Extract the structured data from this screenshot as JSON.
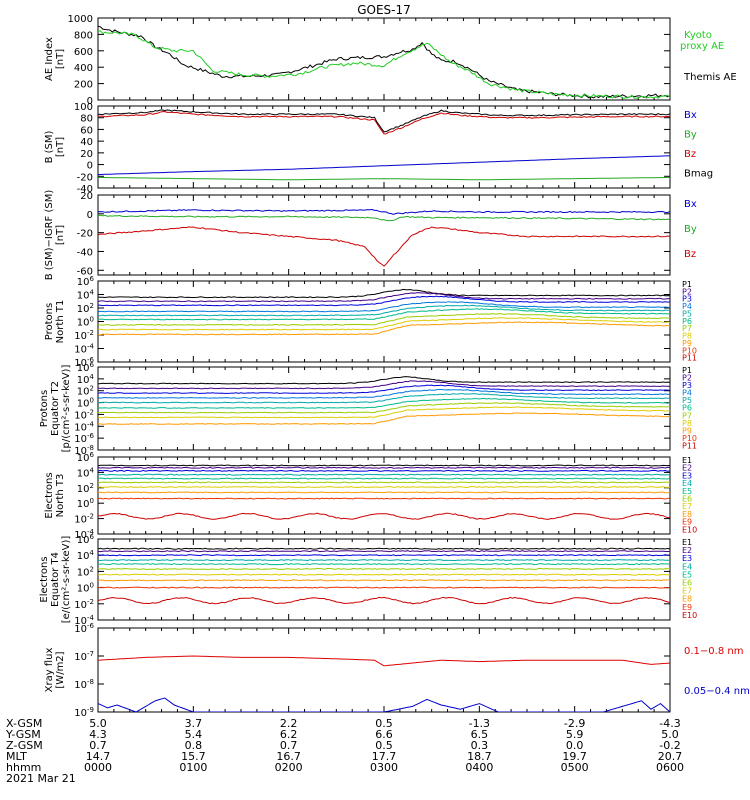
{
  "title": "GOES-17",
  "footer": {
    "date": "2021 Mar 21",
    "row_labels": [
      "X-GSM",
      "Y-GSM",
      "Z-GSM",
      "MLT",
      "hhmm"
    ],
    "columns": [
      {
        "x": "5.0",
        "y": "4.3",
        "z": "0.7",
        "mlt": "14.7",
        "hhmm": "0000"
      },
      {
        "x": "3.7",
        "y": "5.4",
        "z": "0.8",
        "mlt": "15.7",
        "hhmm": "0100"
      },
      {
        "x": "2.2",
        "y": "6.2",
        "z": "0.7",
        "mlt": "16.7",
        "hhmm": "0200"
      },
      {
        "x": "0.5",
        "y": "6.6",
        "z": "0.5",
        "mlt": "17.7",
        "hhmm": "0300"
      },
      {
        "x": "-1.3",
        "y": "6.5",
        "z": "0.3",
        "mlt": "18.7",
        "hhmm": "0400"
      },
      {
        "x": "-2.9",
        "y": "5.9",
        "z": "0.0",
        "mlt": "19.7",
        "hhmm": "0500"
      },
      {
        "x": "-4.3",
        "y": "5.0",
        "z": "-0.2",
        "mlt": "20.7",
        "hhmm": "0600"
      }
    ]
  },
  "chart_data": [
    {
      "type": "line",
      "ylabel": [
        "AE Index",
        "[nT]"
      ],
      "ylim": [
        0,
        1000
      ],
      "yticks": [
        "0",
        "200",
        "400",
        "600",
        "800",
        "1000"
      ],
      "xlim": [
        0,
        6
      ],
      "legend": [
        {
          "name": "Kyoto",
          "name2": "proxy AE",
          "color": "#22cc22"
        },
        {
          "name": "Themis AE",
          "color": "#000000"
        }
      ],
      "series": [
        {
          "name": "Themis AE",
          "color": "#000000",
          "x": [
            0,
            0.1,
            0.25,
            0.45,
            0.6,
            0.75,
            0.9,
            1.1,
            1.3,
            1.6,
            1.9,
            2.2,
            2.5,
            2.8,
            3.0,
            3.15,
            3.3,
            3.4,
            3.5,
            3.6,
            3.75,
            3.9,
            4.1,
            4.4,
            4.8,
            5.2,
            5.6,
            6.0
          ],
          "y": [
            900,
            860,
            820,
            780,
            650,
            560,
            430,
            360,
            290,
            290,
            310,
            400,
            500,
            520,
            530,
            580,
            620,
            700,
            560,
            480,
            470,
            380,
            230,
            120,
            70,
            40,
            50,
            60
          ]
        },
        {
          "name": "Kyoto proxy AE",
          "color": "#22cc22",
          "x": [
            0,
            0.2,
            0.4,
            0.6,
            0.8,
            1.0,
            1.2,
            1.5,
            1.8,
            2.1,
            2.4,
            2.7,
            3.0,
            3.2,
            3.35,
            3.45,
            3.55,
            3.7,
            3.9,
            4.1,
            4.4,
            4.8,
            5.2,
            5.6,
            6.0
          ],
          "y": [
            830,
            820,
            790,
            640,
            600,
            600,
            360,
            310,
            290,
            320,
            410,
            450,
            420,
            560,
            640,
            690,
            600,
            460,
            350,
            200,
            120,
            70,
            50,
            40,
            40
          ]
        }
      ]
    },
    {
      "type": "line",
      "ylabel": [
        "B (SM)",
        "[nT]"
      ],
      "ylim": [
        -40,
        100
      ],
      "yticks": [
        "-40",
        "-20",
        "0",
        "20",
        "40",
        "60",
        "80",
        "100"
      ],
      "xlim": [
        0,
        6
      ],
      "legend": [
        {
          "name": "Bx",
          "color": "#0000cc"
        },
        {
          "name": "By",
          "color": "#22aa22"
        },
        {
          "name": "Bz",
          "color": "#cc0000"
        },
        {
          "name": "Bmag",
          "color": "#000000"
        }
      ],
      "series": [
        {
          "name": "Bx",
          "color": "#0000cc",
          "x": [
            0,
            1,
            2,
            3,
            4,
            5,
            6
          ],
          "y": [
            -17,
            -12,
            -8,
            -2,
            4,
            10,
            15
          ]
        },
        {
          "name": "By",
          "color": "#22aa22",
          "x": [
            0,
            1,
            2,
            3,
            4,
            5,
            6
          ],
          "y": [
            -22,
            -24,
            -26,
            -24,
            -26,
            -24,
            -22
          ]
        },
        {
          "name": "Bz",
          "color": "#cc0000",
          "x": [
            0,
            0.5,
            0.7,
            1.0,
            1.5,
            2.0,
            2.5,
            2.9,
            3.0,
            3.2,
            3.4,
            3.6,
            3.8,
            4.2,
            4.6,
            5.0,
            5.5,
            6.0
          ],
          "y": [
            82,
            85,
            90,
            86,
            82,
            82,
            82,
            76,
            52,
            64,
            78,
            88,
            84,
            80,
            80,
            81,
            82,
            82
          ]
        },
        {
          "name": "Bmag",
          "color": "#000000",
          "x": [
            0,
            0.5,
            0.7,
            1.0,
            1.5,
            2.0,
            2.5,
            2.9,
            3.0,
            3.2,
            3.4,
            3.6,
            3.8,
            4.2,
            4.6,
            5.0,
            5.5,
            6.0
          ],
          "y": [
            86,
            89,
            93,
            90,
            86,
            86,
            86,
            80,
            56,
            68,
            82,
            92,
            88,
            84,
            84,
            85,
            86,
            86
          ]
        }
      ]
    },
    {
      "type": "line",
      "ylabel": [
        "B (SM)−IGRF (SM)",
        "[nT]"
      ],
      "ylim": [
        -65,
        20
      ],
      "yticks": [
        "-60",
        "-40",
        "-20",
        "0",
        "20"
      ],
      "xlim": [
        0,
        6
      ],
      "legend": [
        {
          "name": "Bx",
          "color": "#0000cc"
        },
        {
          "name": "By",
          "color": "#22aa22"
        },
        {
          "name": "Bz",
          "color": "#cc0000"
        }
      ],
      "series": [
        {
          "name": "Bx",
          "color": "#0000cc",
          "x": [
            0,
            1,
            2,
            2.9,
            3.1,
            3.5,
            4,
            5,
            6
          ],
          "y": [
            2,
            4,
            3,
            4,
            0,
            3,
            2,
            2,
            2
          ]
        },
        {
          "name": "By",
          "color": "#22aa22",
          "x": [
            0,
            1,
            2,
            2.9,
            3.05,
            3.2,
            3.5,
            4,
            5,
            6
          ],
          "y": [
            -2,
            -3,
            -3,
            -4,
            -8,
            -3,
            -4,
            -4,
            -5,
            -6
          ]
        },
        {
          "name": "Bz",
          "color": "#cc0000",
          "x": [
            0,
            0.5,
            1.0,
            1.5,
            2.0,
            2.5,
            2.8,
            2.95,
            3.0,
            3.1,
            3.3,
            3.5,
            3.7,
            4.0,
            4.5,
            5.0,
            5.5,
            6.0
          ],
          "y": [
            -22,
            -18,
            -14,
            -20,
            -24,
            -28,
            -35,
            -52,
            -56,
            -44,
            -22,
            -14,
            -16,
            -20,
            -24,
            -24,
            -24,
            -24
          ]
        }
      ]
    },
    {
      "type": "line",
      "yscale": "log",
      "ylabel": [
        "Protons",
        "North T1"
      ],
      "ylim": [
        -6,
        6
      ],
      "ytick_exponents": [
        6,
        4,
        2,
        0,
        -2,
        -4,
        -6
      ],
      "xlim": [
        0,
        6
      ],
      "legend": [
        {
          "name": "P1",
          "color": "#000000"
        },
        {
          "name": "P2",
          "color": "#440088"
        },
        {
          "name": "P3",
          "color": "#0000dd"
        },
        {
          "name": "P4",
          "color": "#0077dd"
        },
        {
          "name": "P5",
          "color": "#00aaaa"
        },
        {
          "name": "P6",
          "color": "#00bb88"
        },
        {
          "name": "P7",
          "color": "#99cc00"
        },
        {
          "name": "P8",
          "color": "#ddcc00"
        },
        {
          "name": "P9",
          "color": "#ff9900"
        },
        {
          "name": "P10",
          "color": "#ee3300"
        },
        {
          "name": "P11",
          "color": "#cc0000"
        }
      ],
      "base_levels": [
        3.6,
        3.0,
        2.4,
        1.5,
        0.9,
        0.3,
        -0.5,
        -1.2,
        -1.9
      ],
      "event": {
        "start": 2.9,
        "peak": 3.2,
        "decay": 0.9
      }
    },
    {
      "type": "line",
      "yscale": "log",
      "ylabel": [
        "Protons",
        "Equator T2",
        "[p/(cm²-s-sr-keV)]"
      ],
      "ylim": [
        -8,
        6
      ],
      "ytick_exponents": [
        6,
        4,
        2,
        0,
        -2,
        -4,
        -6,
        -8
      ],
      "xlim": [
        0,
        6
      ],
      "legend": [
        {
          "name": "P1",
          "color": "#000000"
        },
        {
          "name": "P2",
          "color": "#440088"
        },
        {
          "name": "P3",
          "color": "#0000dd"
        },
        {
          "name": "P4",
          "color": "#0077dd"
        },
        {
          "name": "P5",
          "color": "#00aaaa"
        },
        {
          "name": "P6",
          "color": "#00bb88"
        },
        {
          "name": "P7",
          "color": "#99cc00"
        },
        {
          "name": "P8",
          "color": "#ddcc00"
        },
        {
          "name": "P9",
          "color": "#ff9900"
        },
        {
          "name": "P10",
          "color": "#ee3300"
        },
        {
          "name": "P11",
          "color": "#cc0000"
        }
      ],
      "base_levels": [
        3.2,
        2.4,
        1.6,
        0.8,
        0.0,
        -0.9,
        -1.7,
        -2.5,
        -3.6
      ],
      "event": {
        "start": 2.9,
        "peak": 3.2,
        "decay": 0.9
      }
    },
    {
      "type": "line",
      "yscale": "log",
      "ylabel": [
        "Electrons",
        "North T3"
      ],
      "ylim": [
        -4,
        6
      ],
      "ytick_exponents": [
        6,
        4,
        2,
        0,
        -2,
        -4
      ],
      "xlim": [
        0,
        6
      ],
      "legend": [
        {
          "name": "E1",
          "color": "#000000"
        },
        {
          "name": "E2",
          "color": "#440088"
        },
        {
          "name": "E3",
          "color": "#0000dd"
        },
        {
          "name": "E4",
          "color": "#00aaaa"
        },
        {
          "name": "E5",
          "color": "#00bb88"
        },
        {
          "name": "E6",
          "color": "#99cc00"
        },
        {
          "name": "E7",
          "color": "#ddcc00"
        },
        {
          "name": "E8",
          "color": "#ff9900"
        },
        {
          "name": "E9",
          "color": "#ee3300"
        },
        {
          "name": "E10",
          "color": "#cc0000"
        }
      ],
      "base_levels": [
        4.9,
        4.6,
        4.2,
        3.7,
        3.2,
        2.7,
        2.1,
        1.4,
        0.6,
        -1.7
      ]
    },
    {
      "type": "line",
      "yscale": "log",
      "ylabel": [
        "Electrons",
        "Equator T4",
        "[e/(cm²-s-sr-keV)]"
      ],
      "ylim": [
        -4,
        6
      ],
      "ytick_exponents": [
        6,
        4,
        2,
        0,
        -2,
        -4
      ],
      "xlim": [
        0,
        6
      ],
      "legend": [
        {
          "name": "E1",
          "color": "#000000"
        },
        {
          "name": "E2",
          "color": "#440088"
        },
        {
          "name": "E3",
          "color": "#0000dd"
        },
        {
          "name": "E4",
          "color": "#00aaaa"
        },
        {
          "name": "E5",
          "color": "#00bb88"
        },
        {
          "name": "E6",
          "color": "#99cc00"
        },
        {
          "name": "E7",
          "color": "#ddcc00"
        },
        {
          "name": "E8",
          "color": "#ff9900"
        },
        {
          "name": "E9",
          "color": "#ee3300"
        },
        {
          "name": "E10",
          "color": "#cc0000"
        }
      ],
      "base_levels": [
        4.8,
        4.5,
        4.0,
        3.4,
        2.9,
        2.3,
        1.6,
        0.9,
        0.0,
        -1.6
      ]
    },
    {
      "type": "line",
      "yscale": "log",
      "ylabel": [
        "Xray flux",
        "[W/m2]"
      ],
      "ylim": [
        -9,
        -6
      ],
      "ytick_exponents": [
        -6,
        -7,
        -8,
        -9
      ],
      "xlim": [
        0,
        6
      ],
      "legend": [
        {
          "name": "0.1−0.8 nm",
          "color": "#dd0000"
        },
        {
          "name": "0.05−0.4 nm",
          "color": "#0000cc"
        }
      ],
      "series": [
        {
          "name": "0.1−0.8 nm",
          "color": "#dd0000",
          "x": [
            0,
            0.5,
            1.0,
            1.5,
            2.0,
            2.5,
            2.9,
            3.0,
            3.3,
            3.6,
            4.0,
            4.5,
            5.0,
            5.5,
            5.8,
            6.0
          ],
          "y": [
            -7.15,
            -7.05,
            -7.0,
            -7.05,
            -7.05,
            -7.1,
            -7.15,
            -7.35,
            -7.25,
            -7.15,
            -7.2,
            -7.15,
            -7.15,
            -7.15,
            -7.3,
            -7.25
          ]
        },
        {
          "name": "0.05−0.4 nm",
          "color": "#0000cc",
          "x": [
            0,
            0.1,
            0.2,
            0.4,
            0.6,
            0.7,
            0.8,
            1.0,
            1.2,
            1.5,
            1.8,
            2.2,
            2.6,
            3.0,
            3.3,
            3.45,
            3.6,
            3.8,
            4.0,
            4.2,
            4.5,
            4.8,
            5.0,
            5.3,
            5.5,
            5.7,
            5.8,
            5.9,
            6.0
          ],
          "y": [
            -8.7,
            -8.85,
            -8.75,
            -9.0,
            -8.6,
            -8.5,
            -8.75,
            -9.0,
            -9.0,
            -9.0,
            -9.0,
            -9.0,
            -9.0,
            -9.0,
            -8.8,
            -8.55,
            -8.75,
            -8.9,
            -8.7,
            -9.0,
            -9.0,
            -9.0,
            -9.0,
            -9.0,
            -8.8,
            -8.6,
            -8.9,
            -8.7,
            -9.0
          ]
        }
      ]
    }
  ]
}
